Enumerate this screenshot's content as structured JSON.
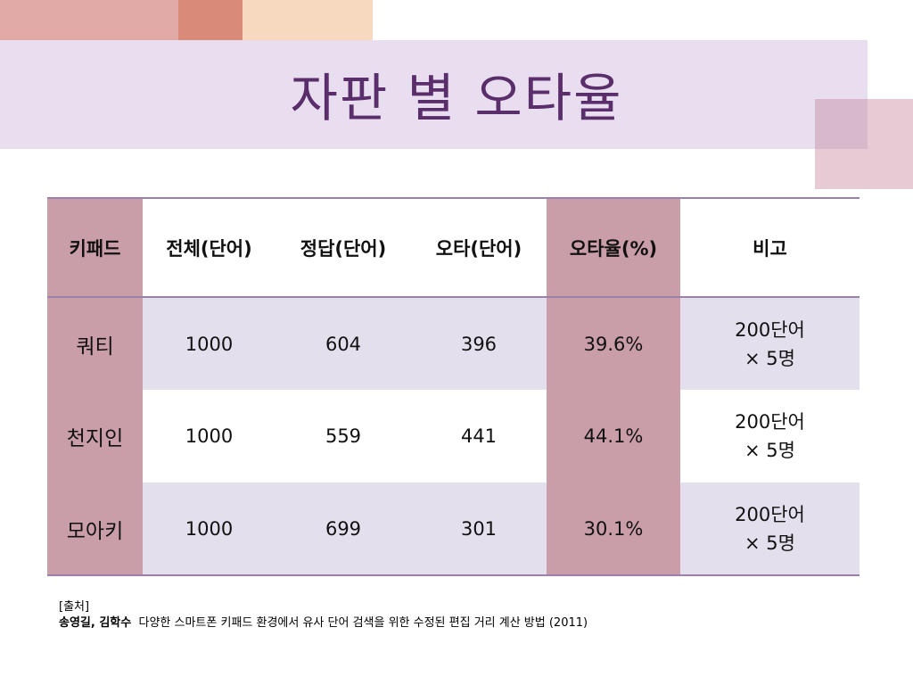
{
  "title": "자판 별 오타율",
  "table": {
    "headers": [
      "키패드",
      "전체(단어)",
      "정답(단어)",
      "오타(단어)",
      "오타율(%)",
      "비고"
    ],
    "rows": [
      {
        "keypad": "쿼티",
        "total": "1000",
        "correct": "604",
        "typo": "396",
        "rate": "39.6%",
        "note_line1": "200단어",
        "note_line2": "× 5명"
      },
      {
        "keypad": "천지인",
        "total": "1000",
        "correct": "559",
        "typo": "441",
        "rate": "44.1%",
        "note_line1": "200단어",
        "note_line2": "× 5명"
      },
      {
        "keypad": "모아키",
        "total": "1000",
        "correct": "699",
        "typo": "301",
        "rate": "30.1%",
        "note_line1": "200단어",
        "note_line2": "× 5명"
      }
    ]
  },
  "source": {
    "label": "[출처]",
    "authors": "송영길, 김학수",
    "citation": "다양한 스마트폰 키패드 환경에서 유사 단어 검색을 위한 수정된 편집 거리 계산 방법 (2011)"
  }
}
